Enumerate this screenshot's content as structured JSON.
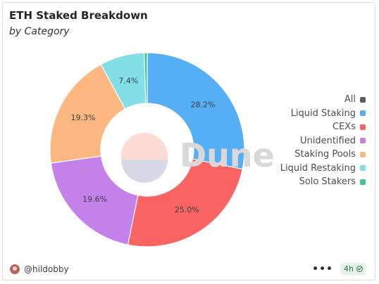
{
  "header": {
    "title": "ETH Staked Breakdown",
    "subtitle": "by Category"
  },
  "chart_data": {
    "type": "pie",
    "style": "donut",
    "categories": [
      "Liquid Staking",
      "CEXs",
      "Unidentified",
      "Staking Pools",
      "Liquid Restaking",
      "Solo Stakers"
    ],
    "values": [
      28.2,
      25.0,
      19.6,
      19.3,
      7.4,
      0.5
    ],
    "value_labels": [
      "28.2%",
      "25.0%",
      "19.6%",
      "19.3%",
      "7.4%",
      ""
    ],
    "colors": [
      "#56aef5",
      "#fa6462",
      "#c581ea",
      "#fdb780",
      "#82dfe5",
      "#3cc98b"
    ],
    "legend_placement": "right",
    "legend": [
      {
        "label": "All",
        "color": "#5a5d62"
      },
      {
        "label": "Liquid Staking",
        "color": "#56aef5"
      },
      {
        "label": "CEXs",
        "color": "#fa6462"
      },
      {
        "label": "Unidentified",
        "color": "#c581ea"
      },
      {
        "label": "Staking Pools",
        "color": "#fdb780"
      },
      {
        "label": "Liquid Restaking",
        "color": "#82dfe5"
      },
      {
        "label": "Solo Stakers",
        "color": "#3cc98b"
      }
    ]
  },
  "watermark": {
    "text": "Dune",
    "icon": "dune-logo-icon"
  },
  "footer": {
    "author": "@hildobby",
    "more_icon": "more-dots-icon",
    "more": "•••",
    "age": "4h",
    "status_icon": "check-circle-icon"
  }
}
